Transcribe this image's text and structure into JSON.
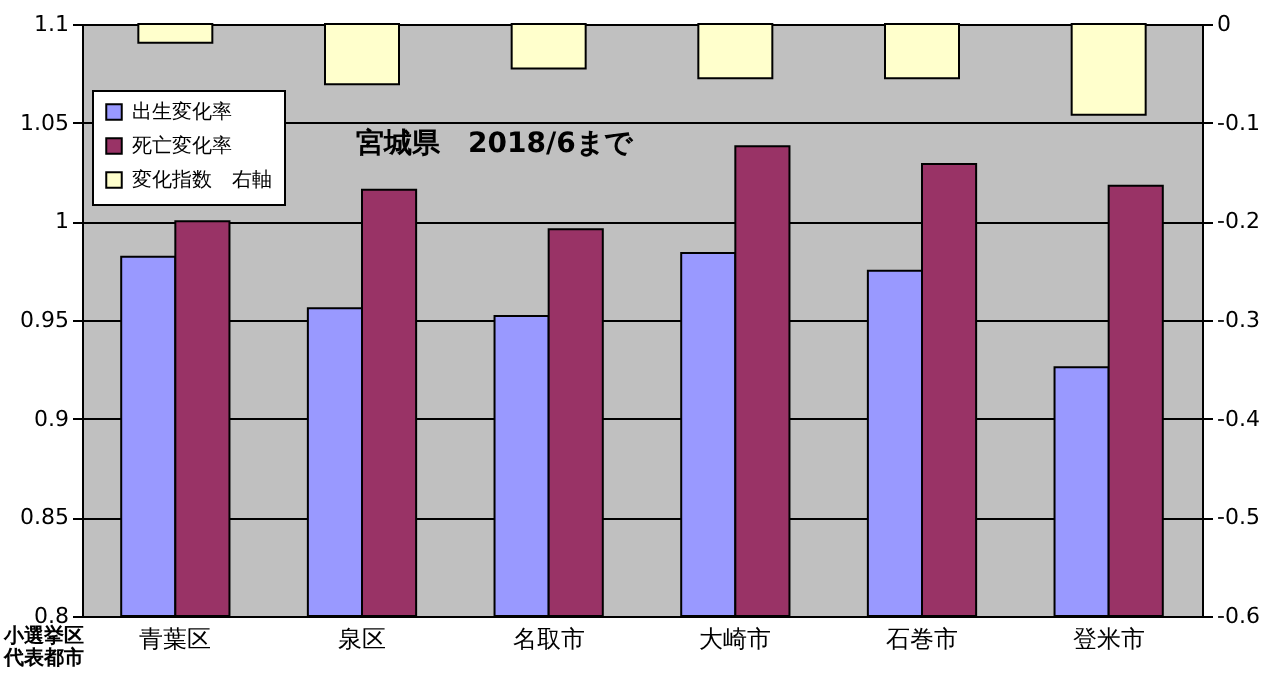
{
  "chart_data": {
    "type": "bar",
    "title": "宮城県　2018/6まで",
    "annotations": [
      "小選挙区代表都市"
    ],
    "categories": [
      "青葉区",
      "泉区",
      "名取市",
      "大崎市",
      "石巻市",
      "登米市"
    ],
    "series": [
      {
        "name": "出生変化率",
        "color": "#9999ff",
        "values": [
          0.982,
          0.956,
          0.952,
          0.984,
          0.975,
          0.926
        ]
      },
      {
        "name": "死亡変化率",
        "color": "#993366",
        "values": [
          1.0,
          1.016,
          0.996,
          1.038,
          1.029,
          1.018
        ]
      },
      {
        "name": "変化指数　右軸",
        "color": "#ffffcc",
        "axis": "y2",
        "values": [
          -0.019,
          -0.061,
          -0.045,
          -0.055,
          -0.055,
          -0.092
        ]
      }
    ],
    "ylim": [
      0.8,
      1.1
    ],
    "yticks": [
      0.8,
      0.85,
      0.9,
      0.95,
      1,
      1.05,
      1.1
    ],
    "y2lim": [
      -0.6,
      0
    ],
    "y2ticks": [
      -0.6,
      -0.5,
      -0.4,
      -0.3,
      -0.2,
      -0.1,
      0
    ],
    "grid": "y",
    "legend": "top left"
  }
}
